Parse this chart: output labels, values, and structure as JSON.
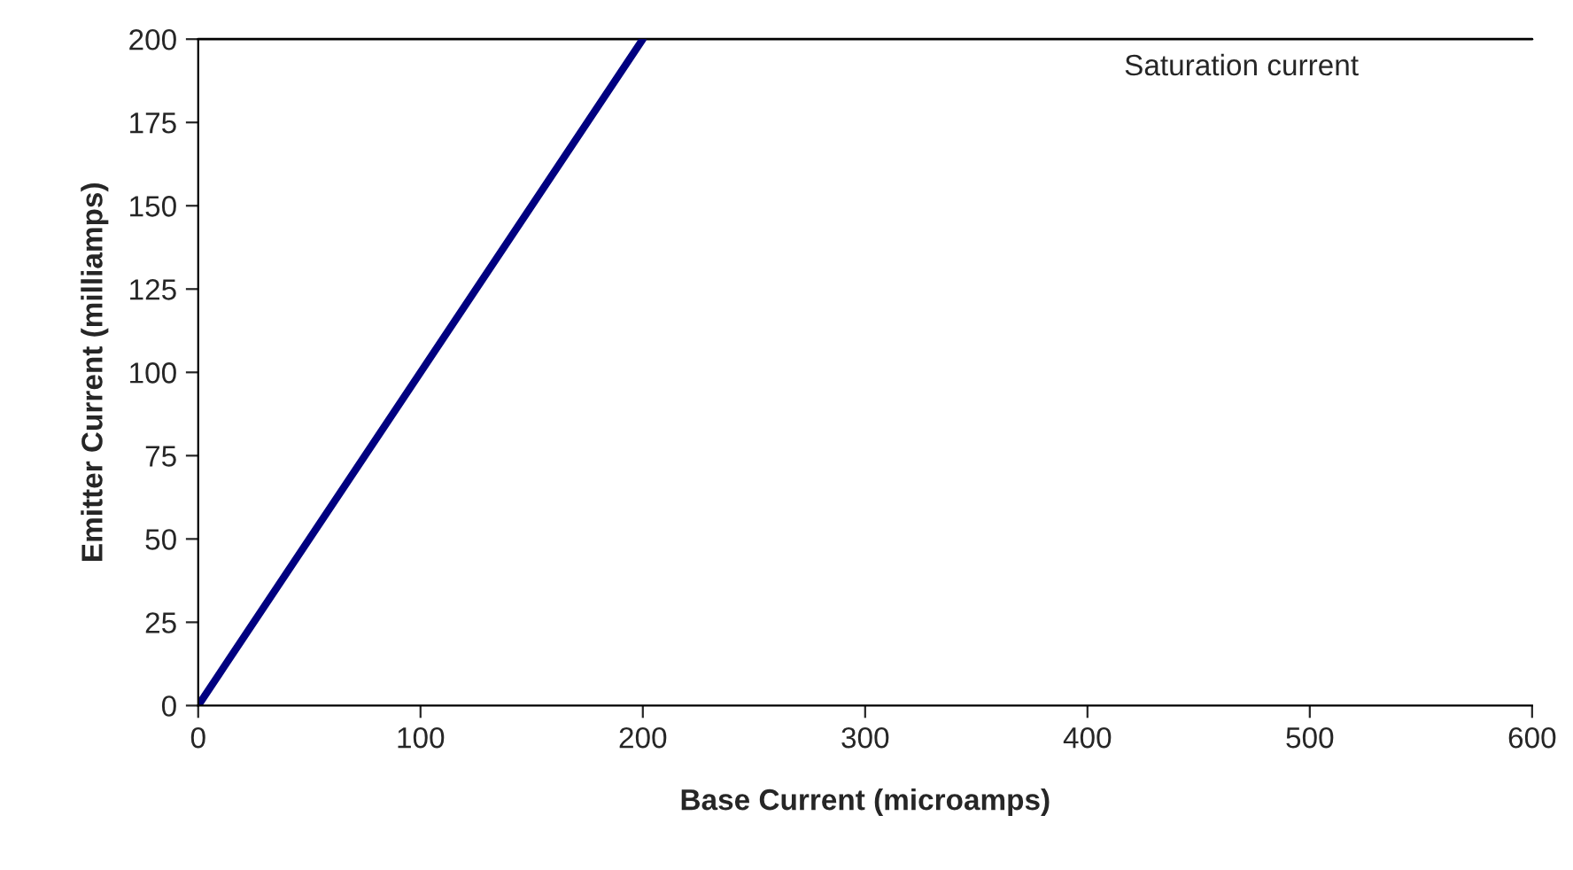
{
  "chart_data": {
    "type": "line",
    "xlabel": "Base Current (microamps)",
    "ylabel": "Emitter Current (milliamps)",
    "x": [
      0,
      200
    ],
    "series": [
      {
        "color": "#000080",
        "values": [
          0,
          200
        ]
      }
    ],
    "xlim": [
      0,
      600
    ],
    "xticks": [
      0,
      100,
      200,
      300,
      400,
      500,
      600
    ],
    "ylim": [
      0,
      200
    ],
    "yticks": [
      0,
      25,
      50,
      75,
      100,
      125,
      150,
      175,
      200
    ],
    "ref_lines": [
      {
        "axis": "y",
        "value": 200,
        "label": "Saturation current",
        "color": "#000000"
      }
    ],
    "grid": false,
    "legend": false,
    "marker": "none",
    "line_style": "solid"
  }
}
